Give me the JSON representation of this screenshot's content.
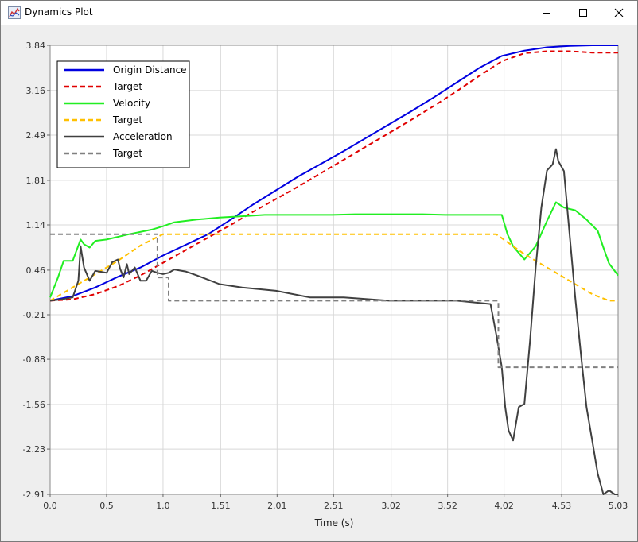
{
  "window": {
    "title": "Dynamics Plot",
    "minimize_icon": "minimize-icon",
    "maximize_icon": "maximize-icon",
    "close_icon": "close-icon"
  },
  "chart_data": {
    "type": "line",
    "xlabel": "Time (s)",
    "ylabel": "",
    "xlim": [
      0,
      5.03
    ],
    "ylim": [
      -2.91,
      3.84
    ],
    "x_ticks": [
      "0.0",
      "0.5",
      "1.0",
      "1.51",
      "2.01",
      "2.51",
      "3.02",
      "3.52",
      "4.02",
      "4.53",
      "5.03"
    ],
    "x_tick_values": [
      0,
      0.5,
      1.0,
      1.51,
      2.01,
      2.51,
      3.02,
      3.52,
      4.02,
      4.53,
      5.03
    ],
    "y_ticks": [
      "3.84",
      "3.16",
      "2.49",
      "1.81",
      "1.14",
      "0.46",
      "-0.21",
      "-0.88",
      "-1.56",
      "-2.23",
      "-2.91"
    ],
    "y_tick_values": [
      3.84,
      3.16,
      2.49,
      1.81,
      1.14,
      0.46,
      -0.21,
      -0.88,
      -1.56,
      -2.23,
      -2.91
    ],
    "grid": true,
    "legend_position": "top-left",
    "series": [
      {
        "name": "Origin Distance",
        "color": "#0000e0",
        "dash": "solid",
        "x": [
          0.0,
          0.2,
          0.4,
          0.6,
          0.8,
          1.0,
          1.2,
          1.4,
          1.6,
          1.8,
          2.0,
          2.2,
          2.4,
          2.6,
          2.8,
          3.0,
          3.2,
          3.4,
          3.6,
          3.8,
          4.0,
          4.2,
          4.4,
          4.6,
          4.8,
          5.03
        ],
        "y": [
          0.0,
          0.07,
          0.2,
          0.36,
          0.5,
          0.68,
          0.84,
          1.0,
          1.22,
          1.45,
          1.66,
          1.87,
          2.06,
          2.25,
          2.45,
          2.65,
          2.85,
          3.06,
          3.28,
          3.5,
          3.68,
          3.76,
          3.81,
          3.83,
          3.84,
          3.84
        ]
      },
      {
        "name": "Target",
        "color": "#e00000",
        "dash": "dashed",
        "x": [
          0.0,
          0.2,
          0.4,
          0.6,
          0.8,
          1.0,
          1.2,
          1.4,
          1.6,
          1.8,
          2.0,
          2.2,
          2.4,
          2.6,
          2.8,
          3.0,
          3.2,
          3.4,
          3.6,
          3.8,
          4.0,
          4.2,
          4.4,
          4.6,
          4.8,
          5.03
        ],
        "y": [
          0.0,
          0.02,
          0.1,
          0.22,
          0.38,
          0.57,
          0.76,
          0.95,
          1.14,
          1.34,
          1.53,
          1.72,
          1.92,
          2.12,
          2.32,
          2.52,
          2.72,
          2.93,
          3.15,
          3.38,
          3.6,
          3.72,
          3.75,
          3.75,
          3.73,
          3.73
        ]
      },
      {
        "name": "Velocity",
        "color": "#22ee22",
        "dash": "solid",
        "x": [
          0.0,
          0.07,
          0.12,
          0.2,
          0.27,
          0.3,
          0.35,
          0.4,
          0.5,
          0.7,
          0.9,
          1.0,
          1.1,
          1.3,
          1.5,
          1.7,
          1.9,
          2.1,
          2.3,
          2.5,
          2.7,
          2.9,
          3.1,
          3.3,
          3.5,
          3.7,
          3.85,
          3.95,
          4.0,
          4.05,
          4.1,
          4.15,
          4.2,
          4.3,
          4.4,
          4.48,
          4.55,
          4.65,
          4.75,
          4.85,
          4.9,
          4.95,
          5.03
        ],
        "y": [
          0.05,
          0.35,
          0.6,
          0.6,
          0.92,
          0.85,
          0.8,
          0.9,
          0.92,
          1.0,
          1.07,
          1.12,
          1.18,
          1.22,
          1.25,
          1.27,
          1.29,
          1.29,
          1.29,
          1.29,
          1.3,
          1.3,
          1.3,
          1.3,
          1.29,
          1.29,
          1.29,
          1.29,
          1.29,
          1.0,
          0.82,
          0.72,
          0.62,
          0.82,
          1.2,
          1.48,
          1.4,
          1.36,
          1.22,
          1.05,
          0.8,
          0.56,
          0.38
        ]
      },
      {
        "name": "Target",
        "color": "#ffc000",
        "dash": "dashed",
        "x": [
          0.0,
          0.3,
          0.6,
          0.8,
          1.0,
          1.5,
          2.0,
          2.5,
          3.0,
          3.5,
          3.95,
          4.2,
          4.5,
          4.8,
          4.95,
          5.03
        ],
        "y": [
          0.0,
          0.3,
          0.6,
          0.83,
          1.0,
          1.0,
          1.0,
          1.0,
          1.0,
          1.0,
          1.0,
          0.7,
          0.4,
          0.1,
          0.0,
          0.0
        ]
      },
      {
        "name": "Acceleration",
        "color": "#404040",
        "dash": "solid",
        "x": [
          0.0,
          0.1,
          0.2,
          0.25,
          0.27,
          0.3,
          0.35,
          0.4,
          0.5,
          0.55,
          0.6,
          0.62,
          0.65,
          0.68,
          0.7,
          0.75,
          0.8,
          0.85,
          0.9,
          0.95,
          1.0,
          1.05,
          1.1,
          1.2,
          1.3,
          1.5,
          1.7,
          2.0,
          2.3,
          2.6,
          3.0,
          3.3,
          3.6,
          3.9,
          3.95,
          4.0,
          4.03,
          4.06,
          4.1,
          4.15,
          4.2,
          4.25,
          4.3,
          4.35,
          4.4,
          4.45,
          4.48,
          4.5,
          4.55,
          4.6,
          4.65,
          4.7,
          4.75,
          4.8,
          4.85,
          4.9,
          4.95,
          5.0,
          5.03
        ],
        "y": [
          0.0,
          0.02,
          0.05,
          0.3,
          0.82,
          0.5,
          0.3,
          0.45,
          0.42,
          0.58,
          0.62,
          0.48,
          0.35,
          0.55,
          0.4,
          0.5,
          0.3,
          0.3,
          0.45,
          0.42,
          0.4,
          0.42,
          0.47,
          0.44,
          0.38,
          0.25,
          0.2,
          0.15,
          0.05,
          0.05,
          0.0,
          0.0,
          0.0,
          -0.05,
          -0.5,
          -1.0,
          -1.6,
          -1.95,
          -2.1,
          -1.6,
          -1.55,
          -0.6,
          0.5,
          1.4,
          1.96,
          2.05,
          2.28,
          2.1,
          1.95,
          1.0,
          0.05,
          -0.8,
          -1.6,
          -2.1,
          -2.6,
          -2.91,
          -2.85,
          -2.91,
          -2.91
        ]
      },
      {
        "name": "Target",
        "color": "#808080",
        "dash": "dashed",
        "x": [
          0.0,
          0.95,
          0.95,
          1.05,
          1.05,
          2.0,
          3.0,
          3.97,
          3.97,
          4.5,
          5.03
        ],
        "y": [
          1.0,
          1.0,
          0.35,
          0.35,
          0.0,
          0.0,
          0.0,
          0.0,
          -1.0,
          -1.0,
          -1.0
        ]
      }
    ]
  }
}
